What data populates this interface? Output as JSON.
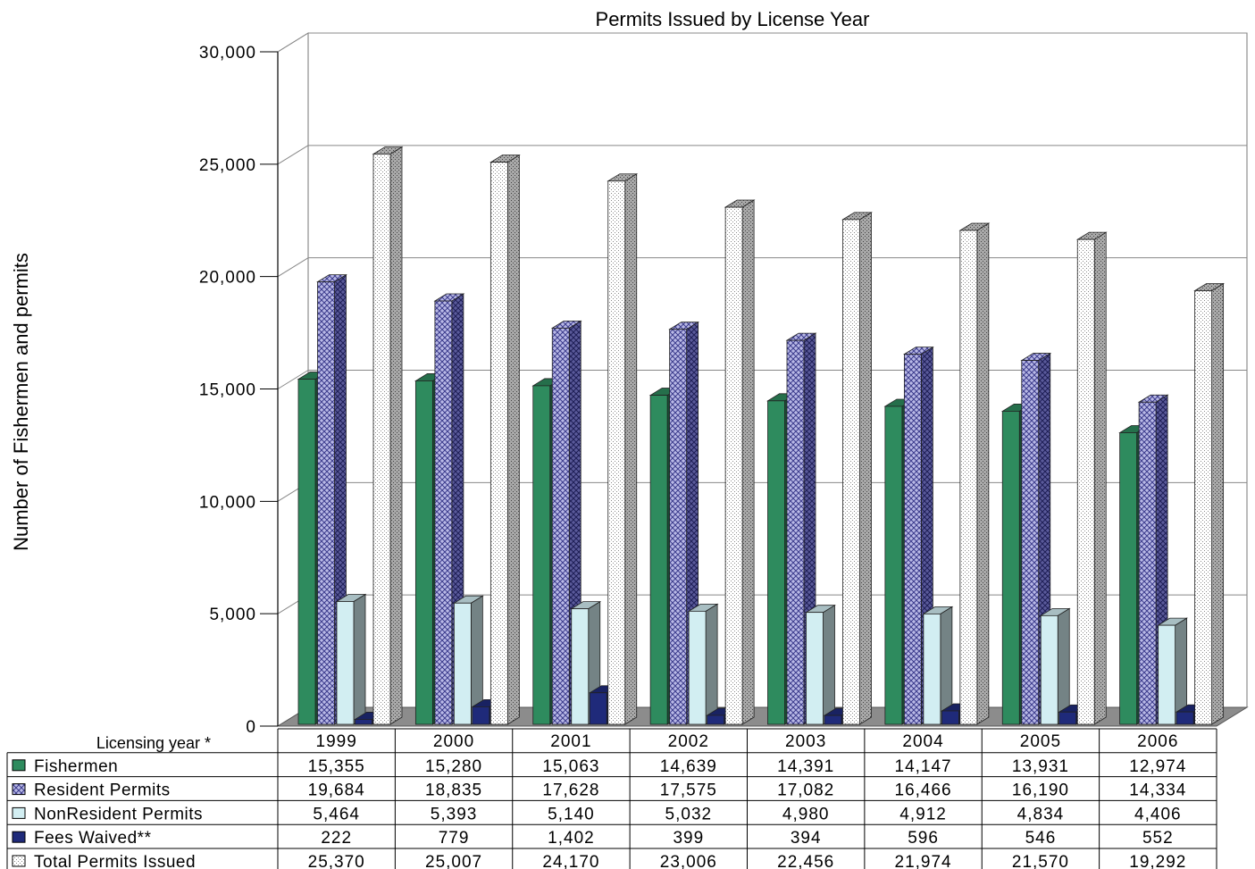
{
  "chart_data": {
    "type": "bar",
    "title": "Permits Issued by License Year",
    "ylabel": "Number of Fishermen and permits",
    "xlabel": "Licensing year *",
    "ylim": [
      0,
      30000
    ],
    "yticks": [
      "0",
      "5,000",
      "10,000",
      "15,000",
      "20,000",
      "25,000",
      "30,000"
    ],
    "categories": [
      "1999",
      "2000",
      "2001",
      "2002",
      "2003",
      "2004",
      "2005",
      "2006"
    ],
    "grid": true,
    "legend": "table-below",
    "series": [
      {
        "name": "Fishermen",
        "color": "#2e8b5e",
        "values": [
          15355,
          15280,
          15063,
          14639,
          14391,
          14147,
          13931,
          12974
        ],
        "labels": [
          "15,355",
          "15,280",
          "15,063",
          "14,639",
          "14,391",
          "14,147",
          "13,931",
          "12,974"
        ]
      },
      {
        "name": "Resident Permits",
        "color": "#8c8ccc",
        "values": [
          19684,
          18835,
          17628,
          17575,
          17082,
          16466,
          16190,
          14334
        ],
        "labels": [
          "19,684",
          "18,835",
          "17,628",
          "17,575",
          "17,082",
          "16,466",
          "16,190",
          "14,334"
        ]
      },
      {
        "name": "NonResident Permits",
        "color": "#d2eef2",
        "values": [
          5464,
          5393,
          5140,
          5032,
          4980,
          4912,
          4834,
          4406
        ],
        "labels": [
          "5,464",
          "5,393",
          "5,140",
          "5,032",
          "4,980",
          "4,912",
          "4,834",
          "4,406"
        ]
      },
      {
        "name": "Fees Waived**",
        "color": "#1f2a7a",
        "values": [
          222,
          779,
          1402,
          399,
          394,
          596,
          546,
          552
        ],
        "labels": [
          "222",
          "779",
          "1,402",
          "399",
          "394",
          "596",
          "546",
          "552"
        ]
      },
      {
        "name": "Total Permits Issued",
        "color": "#f2f2f2",
        "values": [
          25370,
          25007,
          24170,
          23006,
          22456,
          21974,
          21570,
          19292
        ],
        "labels": [
          "25,370",
          "25,007",
          "24,170",
          "23,006",
          "22,456",
          "21,974",
          "21,570",
          "19,292"
        ]
      }
    ]
  }
}
